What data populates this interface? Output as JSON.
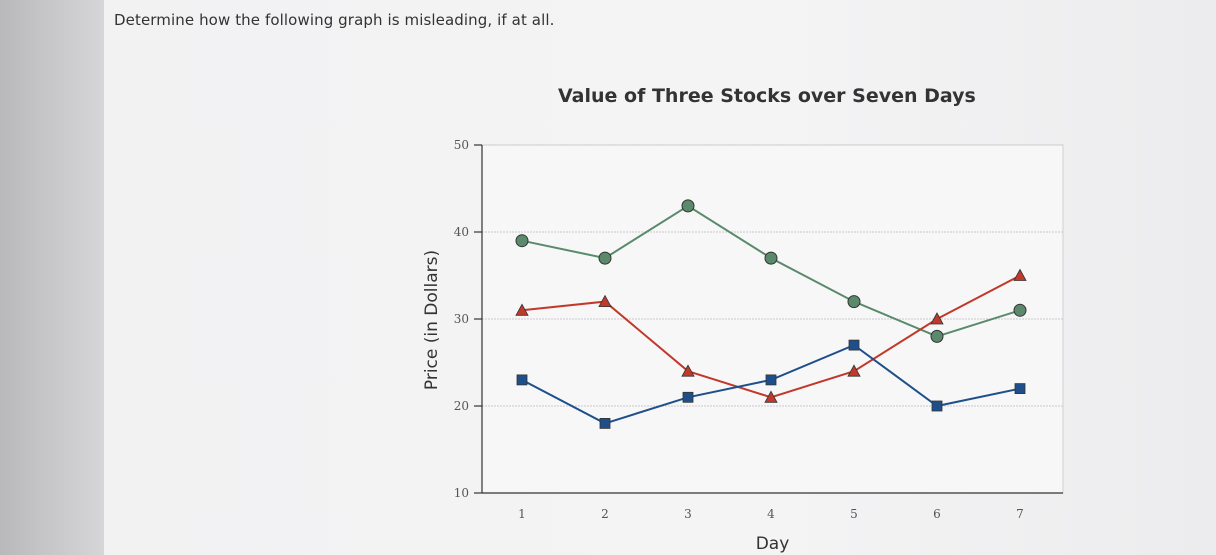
{
  "question": {
    "text": "Determine how the following graph is misleading, if at all."
  },
  "chart_data": {
    "type": "line",
    "title": "Value of Three Stocks over Seven Days",
    "xlabel": "Day",
    "ylabel": "Price (in Dollars)",
    "x": [
      1,
      2,
      3,
      4,
      5,
      6,
      7
    ],
    "ylim": [
      10,
      50
    ],
    "yticks": [
      10,
      20,
      30,
      40,
      50
    ],
    "grid": "horizontal",
    "legend": "none",
    "series": [
      {
        "marker": "circle",
        "color": "#5a8a6b",
        "values": [
          39,
          37,
          43,
          37,
          32,
          28,
          31
        ]
      },
      {
        "marker": "triangle",
        "color": "#c0392b",
        "values": [
          31,
          32,
          24,
          21,
          24,
          30,
          35
        ]
      },
      {
        "marker": "square",
        "color": "#1f4f8b",
        "values": [
          23,
          18,
          21,
          23,
          27,
          20,
          22
        ]
      }
    ]
  }
}
